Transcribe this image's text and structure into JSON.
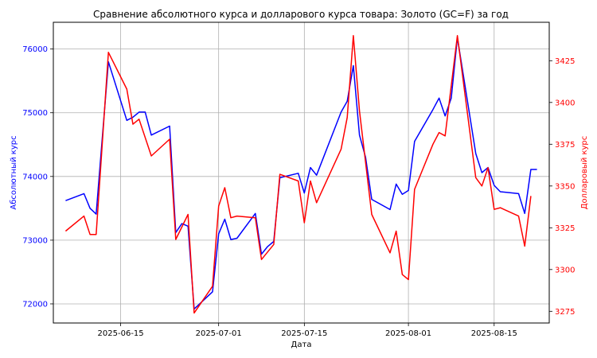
{
  "chart_data": {
    "type": "line",
    "title": "Сравнение абсолютного курса и долларового курса товара: Золото (GC=F) за год",
    "xlabel": "Дата",
    "x_ticks": [
      "2025-06-15",
      "2025-07-01",
      "2025-07-15",
      "2025-08-01",
      "2025-08-15"
    ],
    "x_range": [
      "2025-06-04",
      "2025-08-24"
    ],
    "grid": true,
    "left_axis": {
      "label": "Абсолютный курс",
      "color": "#0000ff",
      "ylim": [
        71700,
        76420
      ],
      "ticks": [
        72000,
        73000,
        74000,
        75000,
        76000
      ]
    },
    "right_axis": {
      "label": "Долларовый курс",
      "color": "#ff0000",
      "ylim": [
        3268,
        3448
      ],
      "ticks": [
        3275,
        3300,
        3325,
        3350,
        3375,
        3400,
        3425
      ]
    },
    "series": [
      {
        "axis": "left",
        "color": "#0000ff",
        "points": [
          [
            "2025-06-06",
            73620
          ],
          [
            "2025-06-09",
            73730
          ],
          [
            "2025-06-10",
            73500
          ],
          [
            "2025-06-11",
            73410
          ],
          [
            "2025-06-13",
            75800
          ],
          [
            "2025-06-16",
            74880
          ],
          [
            "2025-06-17",
            74930
          ],
          [
            "2025-06-18",
            75010
          ],
          [
            "2025-06-19",
            75010
          ],
          [
            "2025-06-20",
            74650
          ],
          [
            "2025-06-23",
            74790
          ],
          [
            "2025-06-24",
            73120
          ],
          [
            "2025-06-25",
            73260
          ],
          [
            "2025-06-26",
            73220
          ],
          [
            "2025-06-27",
            71920
          ],
          [
            "2025-06-30",
            72190
          ],
          [
            "2025-07-01",
            73100
          ],
          [
            "2025-07-02",
            73330
          ],
          [
            "2025-07-03",
            73010
          ],
          [
            "2025-07-04",
            73030
          ],
          [
            "2025-07-07",
            73420
          ],
          [
            "2025-07-08",
            72780
          ],
          [
            "2025-07-09",
            72900
          ],
          [
            "2025-07-10",
            72980
          ],
          [
            "2025-07-11",
            73980
          ],
          [
            "2025-07-14",
            74050
          ],
          [
            "2025-07-15",
            73740
          ],
          [
            "2025-07-16",
            74140
          ],
          [
            "2025-07-17",
            74020
          ],
          [
            "2025-07-21",
            75010
          ],
          [
            "2025-07-22",
            75180
          ],
          [
            "2025-07-23",
            75740
          ],
          [
            "2025-07-24",
            74650
          ],
          [
            "2025-07-25",
            74300
          ],
          [
            "2025-07-26",
            73640
          ],
          [
            "2025-07-29",
            73480
          ],
          [
            "2025-07-30",
            73880
          ],
          [
            "2025-07-31",
            73720
          ],
          [
            "2025-08-01",
            73780
          ],
          [
            "2025-08-02",
            74550
          ],
          [
            "2025-08-05",
            75050
          ],
          [
            "2025-08-06",
            75230
          ],
          [
            "2025-08-07",
            74950
          ],
          [
            "2025-08-08",
            75230
          ],
          [
            "2025-08-09",
            76180
          ],
          [
            "2025-08-12",
            74360
          ],
          [
            "2025-08-13",
            74060
          ],
          [
            "2025-08-14",
            74140
          ],
          [
            "2025-08-15",
            73860
          ],
          [
            "2025-08-16",
            73760
          ],
          [
            "2025-08-19",
            73730
          ],
          [
            "2025-08-20",
            73420
          ],
          [
            "2025-08-21",
            74110
          ],
          [
            "2025-08-22",
            74110
          ]
        ]
      },
      {
        "axis": "right",
        "color": "#ff0000",
        "points": [
          [
            "2025-06-06",
            3323
          ],
          [
            "2025-06-09",
            3332
          ],
          [
            "2025-06-10",
            3321
          ],
          [
            "2025-06-11",
            3321
          ],
          [
            "2025-06-13",
            3430
          ],
          [
            "2025-06-16",
            3408
          ],
          [
            "2025-06-17",
            3387
          ],
          [
            "2025-06-18",
            3390
          ],
          [
            "2025-06-20",
            3368
          ],
          [
            "2025-06-23",
            3378
          ],
          [
            "2025-06-24",
            3318
          ],
          [
            "2025-06-26",
            3333
          ],
          [
            "2025-06-27",
            3274
          ],
          [
            "2025-06-30",
            3290
          ],
          [
            "2025-07-01",
            3338
          ],
          [
            "2025-07-02",
            3349
          ],
          [
            "2025-07-03",
            3331
          ],
          [
            "2025-07-04",
            3332
          ],
          [
            "2025-07-07",
            3331
          ],
          [
            "2025-07-08",
            3306
          ],
          [
            "2025-07-10",
            3315
          ],
          [
            "2025-07-11",
            3357
          ],
          [
            "2025-07-14",
            3353
          ],
          [
            "2025-07-15",
            3328
          ],
          [
            "2025-07-16",
            3353
          ],
          [
            "2025-07-17",
            3340
          ],
          [
            "2025-07-21",
            3372
          ],
          [
            "2025-07-22",
            3391
          ],
          [
            "2025-07-23",
            3440
          ],
          [
            "2025-07-24",
            3395
          ],
          [
            "2025-07-26",
            3333
          ],
          [
            "2025-07-29",
            3310
          ],
          [
            "2025-07-30",
            3323
          ],
          [
            "2025-07-31",
            3297
          ],
          [
            "2025-08-01",
            3294
          ],
          [
            "2025-08-02",
            3348
          ],
          [
            "2025-08-05",
            3375
          ],
          [
            "2025-08-06",
            3382
          ],
          [
            "2025-08-07",
            3380
          ],
          [
            "2025-08-09",
            3440
          ],
          [
            "2025-08-12",
            3355
          ],
          [
            "2025-08-13",
            3350
          ],
          [
            "2025-08-14",
            3361
          ],
          [
            "2025-08-15",
            3336
          ],
          [
            "2025-08-16",
            3337
          ],
          [
            "2025-08-19",
            3332
          ],
          [
            "2025-08-20",
            3314
          ],
          [
            "2025-08-21",
            3344
          ]
        ]
      }
    ]
  }
}
